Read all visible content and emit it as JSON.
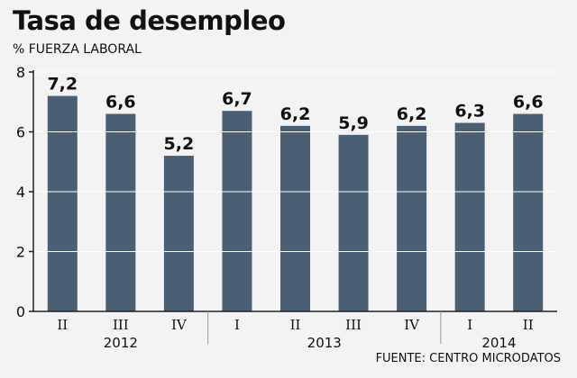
{
  "header": {
    "title": "Tasa de desempleo",
    "subtitle": "% FUERZA LABORAL"
  },
  "footer": {
    "source": "FUENTE: CENTRO MICRODATOS"
  },
  "colors": {
    "bar": "#4a5f73",
    "axis": "#222222",
    "gridline": "#ffffff",
    "separator": "#999999"
  },
  "chart_data": {
    "type": "bar",
    "categories": [
      "II",
      "III",
      "IV",
      "I",
      "II",
      "III",
      "IV",
      "I",
      "II"
    ],
    "years": [
      {
        "label": "2012",
        "start": 0,
        "end": 2
      },
      {
        "label": "2013",
        "start": 3,
        "end": 6
      },
      {
        "label": "2014",
        "start": 7,
        "end": 8
      }
    ],
    "values": [
      7.2,
      6.6,
      5.2,
      6.7,
      6.2,
      5.9,
      6.2,
      6.3,
      6.6
    ],
    "data_labels": [
      "7,2",
      "6,6",
      "5,2",
      "6,7",
      "6,2",
      "5,9",
      "6,2",
      "6,3",
      "6,6"
    ],
    "yticks": [
      0,
      2,
      4,
      6,
      8
    ],
    "ylim": [
      0,
      8
    ],
    "title": "Tasa de desempleo",
    "ylabel": "% FUERZA LABORAL",
    "xlabel": "",
    "grid": true
  }
}
